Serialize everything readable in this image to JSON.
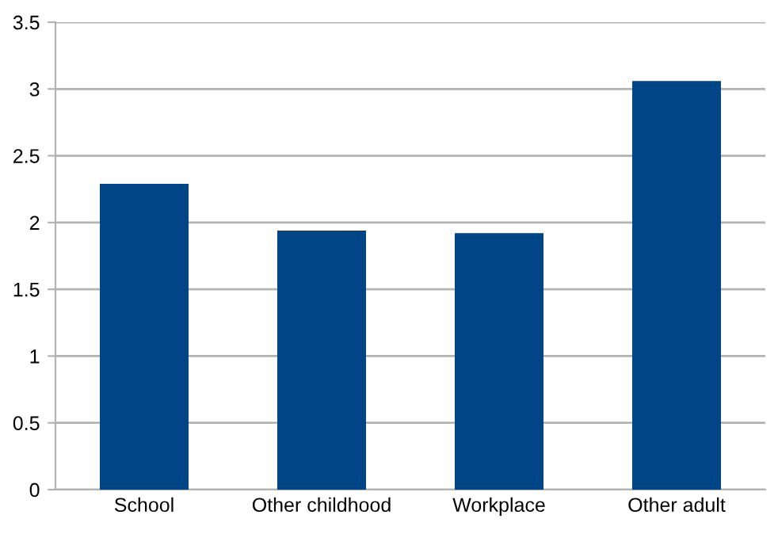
{
  "chart_data": {
    "type": "bar",
    "categories": [
      "School",
      "Other childhood",
      "Workplace",
      "Other adult"
    ],
    "values": [
      2.29,
      1.94,
      1.92,
      3.06
    ],
    "color": "#004586",
    "ylim": [
      0,
      3.5
    ],
    "yticks": [
      0,
      0.5,
      1,
      1.5,
      2,
      2.5,
      3,
      3.5
    ],
    "grid": "y",
    "legend": false
  }
}
